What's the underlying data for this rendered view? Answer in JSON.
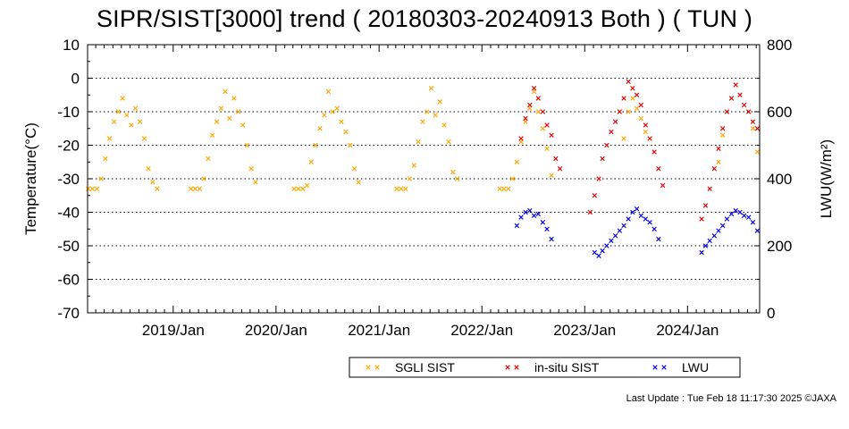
{
  "title": "SIPR/SIST[3000] trend ( 20180303-20240913 Both ) ( TUN )",
  "footer": "Last Update : Tue Feb 18 11:17:30 2025  ©JAXA",
  "chart_data": {
    "type": "scatter",
    "title": "SIPR/SIST[3000] trend ( 20180303-20240913 Both ) ( TUN )",
    "xlabel": "",
    "ylabel": "Temperature(°C)",
    "y2label": "LWU(W/m²)",
    "x_range": [
      "2018-03-03",
      "2024-09-13"
    ],
    "ylim": [
      -70,
      10
    ],
    "y2lim": [
      0,
      800
    ],
    "yticks": [
      10,
      0,
      -10,
      -20,
      -30,
      -40,
      -50,
      -60,
      -70
    ],
    "y2ticks": [
      800,
      600,
      400,
      200,
      0
    ],
    "xticks": [
      "2019/Jan",
      "2020/Jan",
      "2021/Jan",
      "2022/Jan",
      "2023/Jan",
      "2024/Jan"
    ],
    "xtick_dates": [
      "2019-01-01",
      "2020-01-01",
      "2021-01-01",
      "2022-01-01",
      "2023-01-01",
      "2024-01-01"
    ],
    "grid": "horizontal dotted",
    "legend_position": "bottom",
    "series": [
      {
        "name": "SGLI SIST",
        "color": "#ffa500",
        "axis": "left",
        "marker": "x",
        "x": [
          "2018-03-05",
          "2018-03-20",
          "2018-04-05",
          "2018-04-20",
          "2018-05-05",
          "2018-05-20",
          "2018-06-05",
          "2018-06-20",
          "2018-07-05",
          "2018-07-20",
          "2018-08-05",
          "2018-08-20",
          "2018-09-05",
          "2018-09-20",
          "2018-10-05",
          "2018-10-20",
          "2018-11-05",
          "2019-03-05",
          "2019-03-20",
          "2019-04-05",
          "2019-04-20",
          "2019-05-05",
          "2019-05-20",
          "2019-06-05",
          "2019-06-20",
          "2019-07-05",
          "2019-07-20",
          "2019-08-05",
          "2019-08-20",
          "2019-09-05",
          "2019-09-20",
          "2019-10-05",
          "2019-10-20",
          "2020-03-05",
          "2020-03-20",
          "2020-04-05",
          "2020-04-20",
          "2020-05-05",
          "2020-05-20",
          "2020-06-05",
          "2020-06-20",
          "2020-07-05",
          "2020-07-20",
          "2020-08-05",
          "2020-08-20",
          "2020-09-05",
          "2020-09-20",
          "2020-10-05",
          "2020-10-20",
          "2021-03-05",
          "2021-03-20",
          "2021-04-05",
          "2021-04-20",
          "2021-05-05",
          "2021-05-20",
          "2021-06-05",
          "2021-06-20",
          "2021-07-05",
          "2021-07-20",
          "2021-08-05",
          "2021-08-20",
          "2021-09-05",
          "2021-09-20",
          "2021-10-05",
          "2022-03-05",
          "2022-03-20",
          "2022-04-05",
          "2022-04-20",
          "2022-05-05",
          "2022-05-20",
          "2022-06-05",
          "2022-06-20",
          "2022-07-05",
          "2022-07-20",
          "2022-08-05",
          "2022-08-20",
          "2022-09-05",
          "2023-05-20",
          "2023-06-05",
          "2023-06-20",
          "2023-07-05",
          "2023-07-20",
          "2023-08-05",
          "2024-04-20",
          "2024-05-05",
          "2024-08-20",
          "2024-09-05"
        ],
        "y": [
          -33,
          -33,
          -33,
          -30,
          -24,
          -18,
          -13,
          -10,
          -6,
          -11,
          -14,
          -9,
          -13,
          -18,
          -27,
          -31,
          -33,
          -33,
          -33,
          -33,
          -30,
          -24,
          -17,
          -13,
          -9,
          -4,
          -12,
          -6,
          -10,
          -14,
          -20,
          -27,
          -31,
          -33,
          -33,
          -33,
          -32,
          -25,
          -20,
          -15,
          -11,
          -4,
          -10,
          -9,
          -13,
          -16,
          -20,
          -27,
          -31,
          -33,
          -33,
          -33,
          -30,
          -26,
          -19,
          -13,
          -10,
          -3,
          -11,
          -7,
          -14,
          -19,
          -28,
          -30,
          -33,
          -33,
          -33,
          -30,
          -25,
          -19,
          -13,
          -9,
          -4,
          -10,
          -15,
          -21,
          -29,
          -18,
          -10,
          -6,
          -9,
          -12,
          -16,
          -25,
          -17,
          -15,
          -22
        ]
      },
      {
        "name": "in-situ SIST",
        "color": "#e00000",
        "axis": "left",
        "marker": "x",
        "x": [
          "2022-05-20",
          "2022-06-05",
          "2022-06-20",
          "2022-07-05",
          "2022-07-20",
          "2022-08-05",
          "2022-08-20",
          "2022-09-05",
          "2022-09-20",
          "2022-10-05",
          "2023-01-20",
          "2023-02-05",
          "2023-02-20",
          "2023-03-05",
          "2023-03-20",
          "2023-04-05",
          "2023-04-20",
          "2023-05-05",
          "2023-05-20",
          "2023-06-05",
          "2023-06-20",
          "2023-07-05",
          "2023-07-20",
          "2023-08-05",
          "2023-08-20",
          "2023-09-05",
          "2023-09-20",
          "2023-10-05",
          "2024-02-20",
          "2024-03-05",
          "2024-03-20",
          "2024-04-05",
          "2024-04-20",
          "2024-05-05",
          "2024-05-20",
          "2024-06-05",
          "2024-06-20",
          "2024-07-05",
          "2024-07-20",
          "2024-08-05",
          "2024-08-20",
          "2024-09-05"
        ],
        "y": [
          -18,
          -12,
          -8,
          -3,
          -6,
          -10,
          -14,
          -17,
          -24,
          -27,
          -40,
          -35,
          -30,
          -24,
          -20,
          -16,
          -13,
          -10,
          -6,
          -1,
          -3,
          -5,
          -8,
          -14,
          -18,
          -22,
          -27,
          -32,
          -42,
          -38,
          -33,
          -27,
          -21,
          -15,
          -10,
          -6,
          -2,
          -5,
          -8,
          -10,
          -13,
          -15
        ]
      },
      {
        "name": "LWU",
        "color": "#0000e0",
        "axis": "right",
        "marker": "x",
        "x": [
          "2022-05-05",
          "2022-05-20",
          "2022-06-05",
          "2022-06-20",
          "2022-07-05",
          "2022-07-20",
          "2022-08-05",
          "2022-08-20",
          "2022-09-05",
          "2023-02-05",
          "2023-02-20",
          "2023-03-05",
          "2023-03-20",
          "2023-04-05",
          "2023-04-20",
          "2023-05-05",
          "2023-05-20",
          "2023-06-05",
          "2023-06-20",
          "2023-07-05",
          "2023-07-20",
          "2023-08-05",
          "2023-08-20",
          "2023-09-05",
          "2023-09-20",
          "2024-02-20",
          "2024-03-05",
          "2024-03-20",
          "2024-04-05",
          "2024-04-20",
          "2024-05-05",
          "2024-05-20",
          "2024-06-05",
          "2024-06-20",
          "2024-07-05",
          "2024-07-20",
          "2024-08-05",
          "2024-08-20",
          "2024-09-05"
        ],
        "y": [
          260,
          285,
          300,
          305,
          290,
          295,
          270,
          250,
          220,
          180,
          170,
          185,
          200,
          215,
          230,
          245,
          260,
          280,
          300,
          310,
          290,
          280,
          270,
          250,
          220,
          180,
          200,
          215,
          230,
          245,
          260,
          280,
          295,
          305,
          300,
          290,
          285,
          270,
          245
        ]
      }
    ]
  }
}
